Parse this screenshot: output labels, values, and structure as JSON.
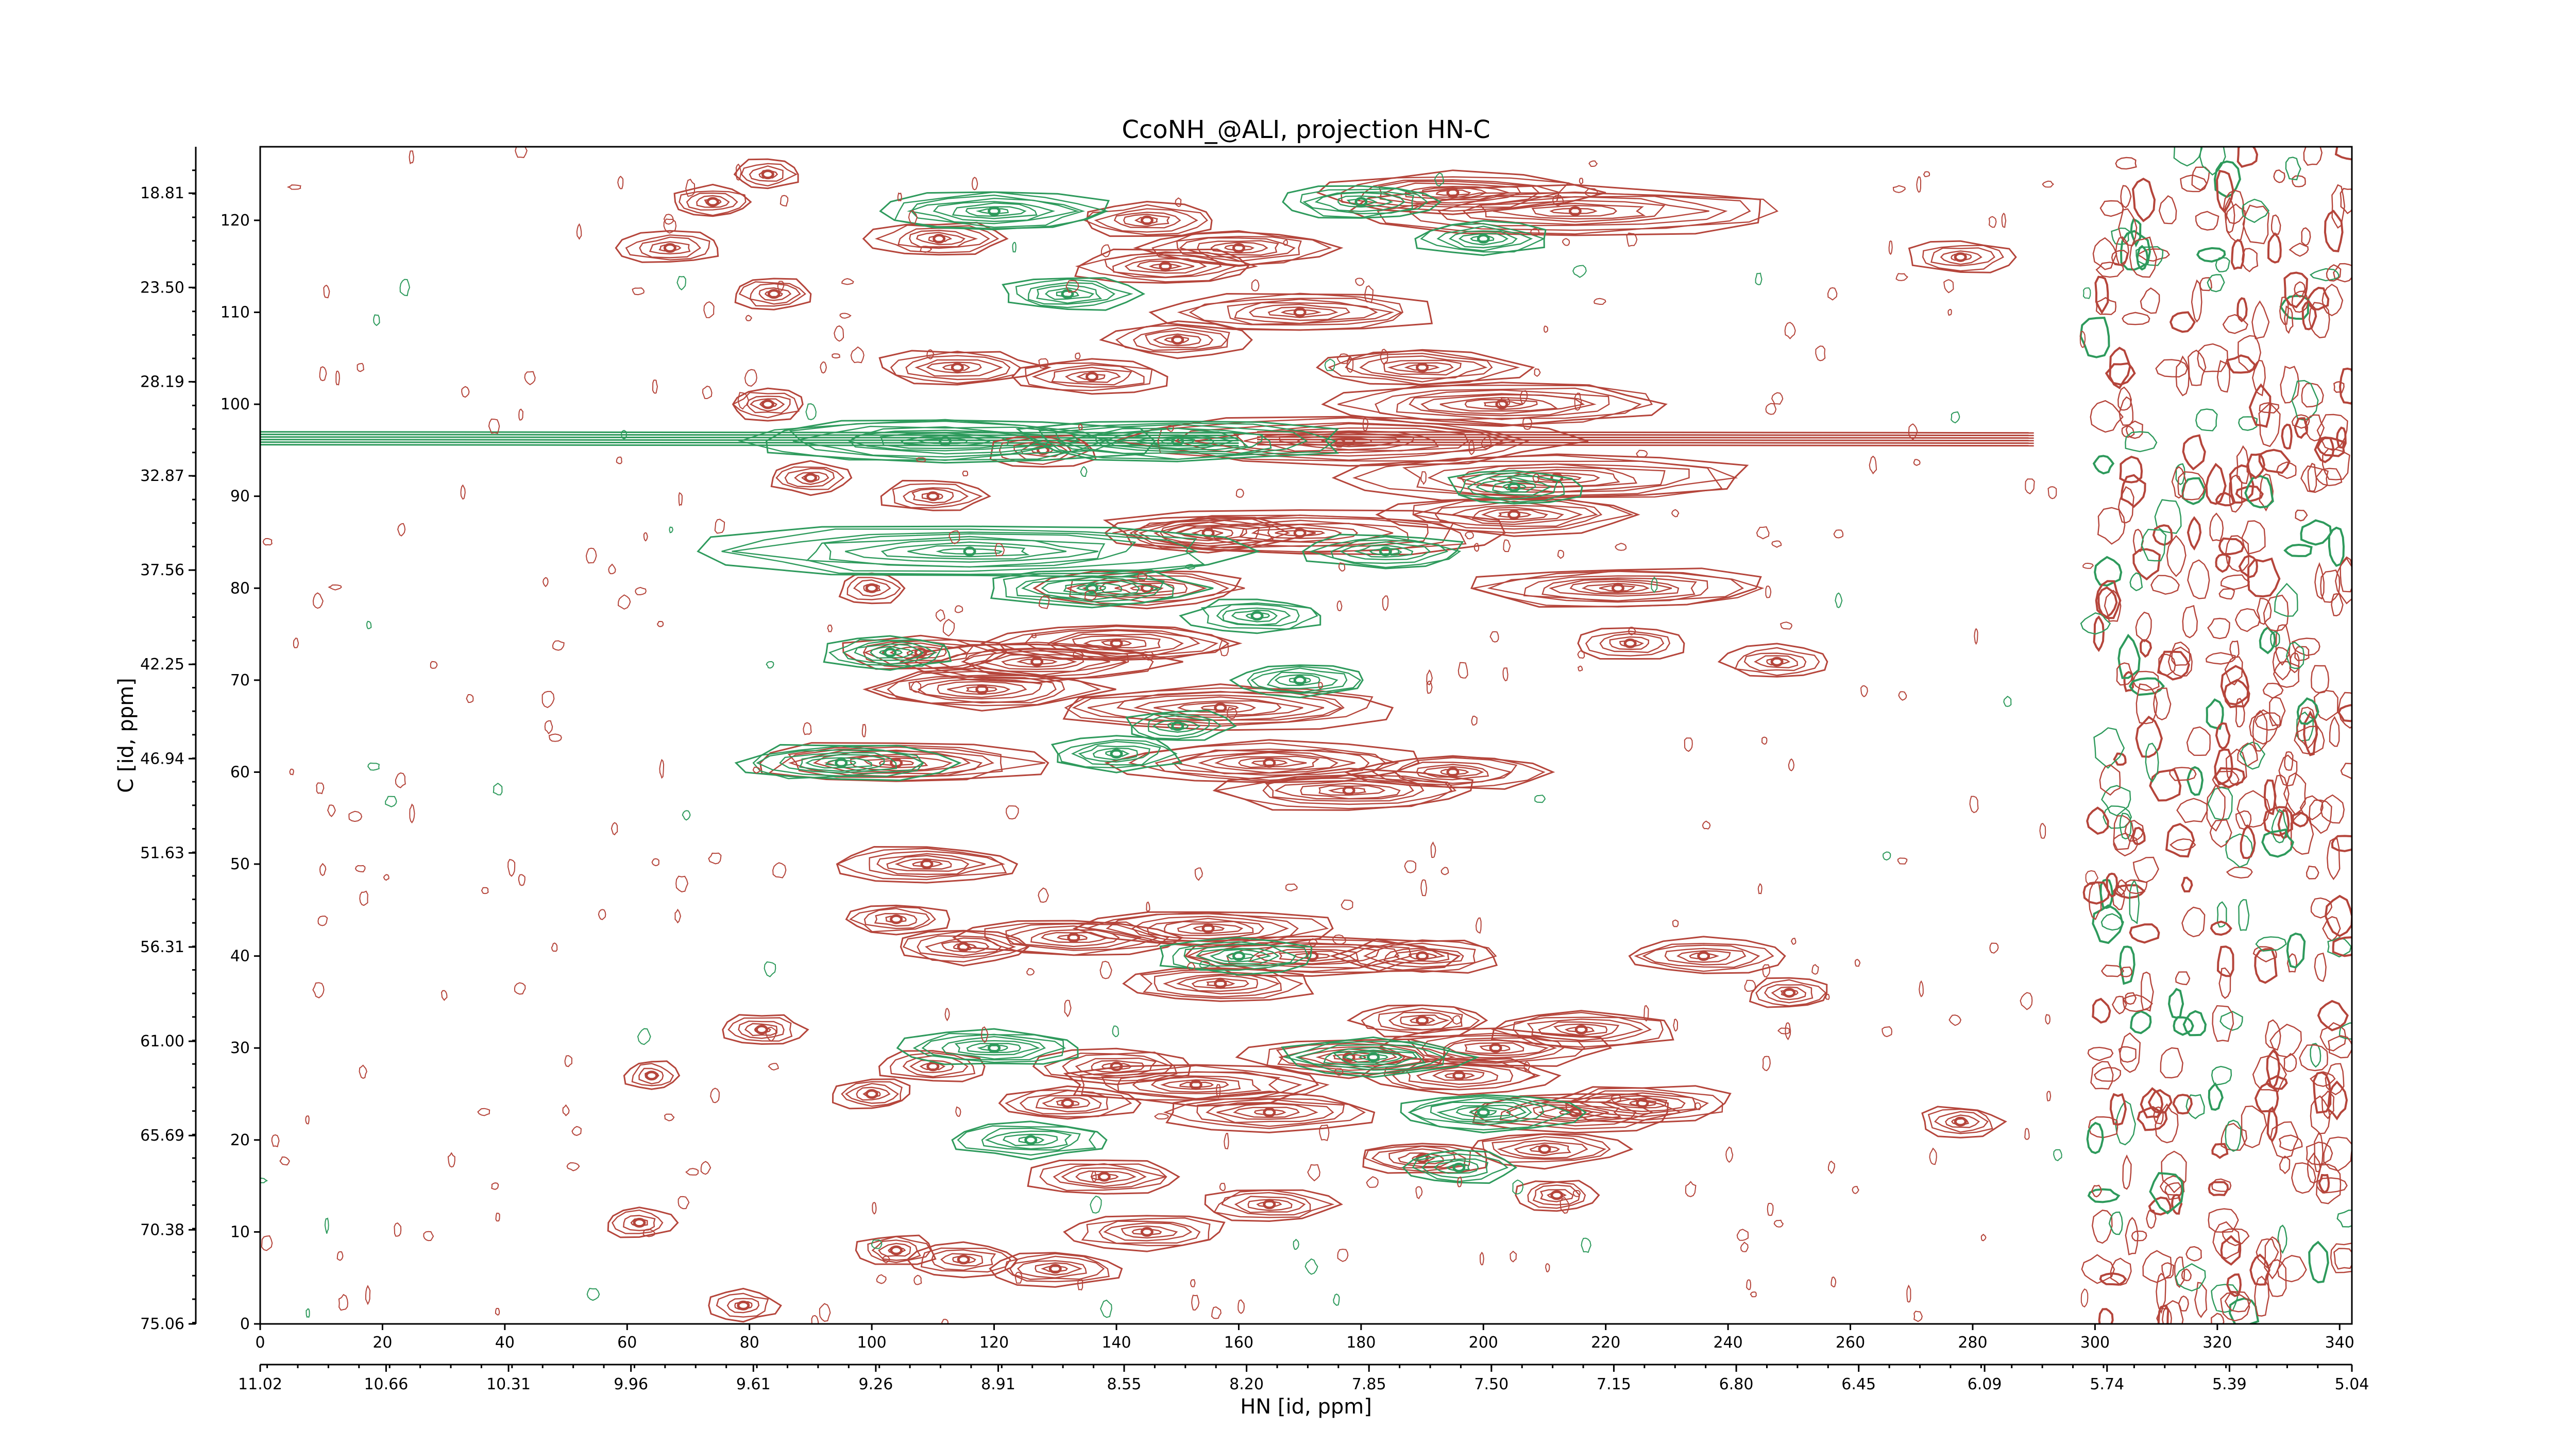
{
  "chart_data": {
    "type": "contour",
    "title": "CcoNH_@ALI, projection HN-C",
    "xlabel": "HN [id, ppm]",
    "ylabel": "C [id, ppm]",
    "x_index_axis": {
      "range": [
        0,
        342
      ],
      "ticks": [
        "0",
        "20",
        "40",
        "60",
        "80",
        "100",
        "120",
        "140",
        "160",
        "180",
        "200",
        "220",
        "240",
        "260",
        "280",
        "300",
        "320",
        "340"
      ]
    },
    "x_ppm_axis": {
      "range": [
        11.02,
        5.04
      ],
      "ticks": [
        "11.02",
        "10.66",
        "10.31",
        "9.96",
        "9.61",
        "9.26",
        "8.91",
        "8.55",
        "8.20",
        "7.85",
        "7.50",
        "7.15",
        "6.80",
        "6.45",
        "6.09",
        "5.74",
        "5.39",
        "5.04"
      ]
    },
    "y_index_axis": {
      "range": [
        0,
        128
      ],
      "ticks": [
        "0",
        "10",
        "20",
        "30",
        "40",
        "50",
        "60",
        "70",
        "80",
        "90",
        "100",
        "110",
        "120"
      ]
    },
    "y_ppm_axis": {
      "range": [
        75.06,
        16.5
      ],
      "ticks": [
        "75.06",
        "70.38",
        "65.69",
        "61.00",
        "56.31",
        "51.63",
        "46.94",
        "42.25",
        "37.56",
        "32.87",
        "28.19",
        "23.50",
        "18.81"
      ]
    },
    "series": [
      {
        "color": "#b5453b"
      },
      {
        "color": "#2e9a5c"
      }
    ],
    "peaks": [
      {
        "x": 100,
        "y": 80,
        "sign": "pos",
        "len": 5
      },
      {
        "x": 108,
        "y": 73,
        "sign": "pos",
        "len": 12
      },
      {
        "x": 104,
        "y": 61,
        "sign": "pos",
        "len": 22
      },
      {
        "x": 118,
        "y": 69,
        "sign": "pos",
        "len": 18
      },
      {
        "x": 127,
        "y": 72,
        "sign": "pos",
        "len": 20
      },
      {
        "x": 140,
        "y": 74,
        "sign": "pos",
        "len": 18
      },
      {
        "x": 157,
        "y": 67,
        "sign": "pos",
        "len": 26
      },
      {
        "x": 165,
        "y": 61,
        "sign": "pos",
        "len": 22
      },
      {
        "x": 178,
        "y": 58,
        "sign": "pos",
        "len": 20
      },
      {
        "x": 195,
        "y": 60,
        "sign": "pos",
        "len": 14
      },
      {
        "x": 145,
        "y": 80,
        "sign": "pos",
        "len": 15
      },
      {
        "x": 170,
        "y": 86,
        "sign": "pos",
        "len": 30
      },
      {
        "x": 155,
        "y": 86,
        "sign": "pos",
        "len": 14
      },
      {
        "x": 205,
        "y": 88,
        "sign": "pos",
        "len": 18
      },
      {
        "x": 212,
        "y": 92,
        "sign": "pos",
        "len": 30
      },
      {
        "x": 222,
        "y": 80,
        "sign": "pos",
        "len": 22
      },
      {
        "x": 170,
        "y": 110,
        "sign": "pos",
        "len": 20
      },
      {
        "x": 150,
        "y": 107,
        "sign": "pos",
        "len": 10
      },
      {
        "x": 190,
        "y": 104,
        "sign": "pos",
        "len": 15
      },
      {
        "x": 203,
        "y": 100,
        "sign": "pos",
        "len": 25
      },
      {
        "x": 178,
        "y": 96,
        "sign": "pos",
        "len": 32
      },
      {
        "x": 148,
        "y": 115,
        "sign": "pos",
        "len": 14
      },
      {
        "x": 160,
        "y": 117,
        "sign": "pos",
        "len": 14
      },
      {
        "x": 195,
        "y": 123,
        "sign": "pos",
        "len": 20
      },
      {
        "x": 215,
        "y": 121,
        "sign": "pos",
        "len": 32
      },
      {
        "x": 145,
        "y": 120,
        "sign": "pos",
        "len": 10
      },
      {
        "x": 83,
        "y": 125,
        "sign": "pos",
        "len": 5
      },
      {
        "x": 74,
        "y": 122,
        "sign": "pos",
        "len": 6
      },
      {
        "x": 67,
        "y": 117,
        "sign": "pos",
        "len": 8
      },
      {
        "x": 84,
        "y": 112,
        "sign": "pos",
        "len": 6
      },
      {
        "x": 111,
        "y": 118,
        "sign": "pos",
        "len": 10
      },
      {
        "x": 114,
        "y": 104,
        "sign": "pos",
        "len": 12
      },
      {
        "x": 136,
        "y": 103,
        "sign": "pos",
        "len": 12
      },
      {
        "x": 128,
        "y": 95,
        "sign": "pos",
        "len": 8
      },
      {
        "x": 110,
        "y": 90,
        "sign": "pos",
        "len": 8
      },
      {
        "x": 90,
        "y": 92,
        "sign": "pos",
        "len": 6
      },
      {
        "x": 83,
        "y": 100,
        "sign": "pos",
        "len": 6
      },
      {
        "x": 109,
        "y": 50,
        "sign": "pos",
        "len": 14
      },
      {
        "x": 104,
        "y": 44,
        "sign": "pos",
        "len": 8
      },
      {
        "x": 115,
        "y": 41,
        "sign": "pos",
        "len": 10
      },
      {
        "x": 133,
        "y": 42,
        "sign": "pos",
        "len": 16
      },
      {
        "x": 155,
        "y": 43,
        "sign": "pos",
        "len": 18
      },
      {
        "x": 172,
        "y": 40,
        "sign": "pos",
        "len": 20
      },
      {
        "x": 190,
        "y": 40,
        "sign": "pos",
        "len": 12
      },
      {
        "x": 157,
        "y": 37,
        "sign": "pos",
        "len": 14
      },
      {
        "x": 190,
        "y": 33,
        "sign": "pos",
        "len": 10
      },
      {
        "x": 202,
        "y": 30,
        "sign": "pos",
        "len": 16
      },
      {
        "x": 216,
        "y": 32,
        "sign": "pos",
        "len": 14
      },
      {
        "x": 178,
        "y": 29,
        "sign": "pos",
        "len": 16
      },
      {
        "x": 153,
        "y": 26,
        "sign": "pos",
        "len": 20
      },
      {
        "x": 140,
        "y": 28,
        "sign": "pos",
        "len": 12
      },
      {
        "x": 132,
        "y": 24,
        "sign": "pos",
        "len": 10
      },
      {
        "x": 165,
        "y": 23,
        "sign": "pos",
        "len": 16
      },
      {
        "x": 196,
        "y": 27,
        "sign": "pos",
        "len": 14
      },
      {
        "x": 215,
        "y": 23,
        "sign": "pos",
        "len": 16
      },
      {
        "x": 226,
        "y": 24,
        "sign": "pos",
        "len": 14
      },
      {
        "x": 236,
        "y": 40,
        "sign": "pos",
        "len": 12
      },
      {
        "x": 250,
        "y": 36,
        "sign": "pos",
        "len": 6
      },
      {
        "x": 248,
        "y": 72,
        "sign": "pos",
        "len": 8
      },
      {
        "x": 224,
        "y": 74,
        "sign": "pos",
        "len": 8
      },
      {
        "x": 278,
        "y": 22,
        "sign": "pos",
        "len": 6
      },
      {
        "x": 278,
        "y": 116,
        "sign": "pos",
        "len": 8
      },
      {
        "x": 100,
        "y": 25,
        "sign": "pos",
        "len": 6
      },
      {
        "x": 110,
        "y": 28,
        "sign": "pos",
        "len": 8
      },
      {
        "x": 104,
        "y": 8,
        "sign": "pos",
        "len": 6
      },
      {
        "x": 115,
        "y": 7,
        "sign": "pos",
        "len": 8
      },
      {
        "x": 130,
        "y": 6,
        "sign": "pos",
        "len": 10
      },
      {
        "x": 145,
        "y": 10,
        "sign": "pos",
        "len": 12
      },
      {
        "x": 138,
        "y": 16,
        "sign": "pos",
        "len": 12
      },
      {
        "x": 165,
        "y": 13,
        "sign": "pos",
        "len": 10
      },
      {
        "x": 190,
        "y": 18,
        "sign": "pos",
        "len": 10
      },
      {
        "x": 210,
        "y": 19,
        "sign": "pos",
        "len": 12
      },
      {
        "x": 212,
        "y": 14,
        "sign": "pos",
        "len": 6
      },
      {
        "x": 62,
        "y": 11,
        "sign": "pos",
        "len": 5
      },
      {
        "x": 82,
        "y": 32,
        "sign": "pos",
        "len": 6
      },
      {
        "x": 64,
        "y": 27,
        "sign": "pos",
        "len": 4
      },
      {
        "x": 79,
        "y": 2,
        "sign": "pos",
        "len": 5
      },
      {
        "x": 95,
        "y": 61,
        "sign": "neg",
        "len": 16
      },
      {
        "x": 103,
        "y": 73,
        "sign": "neg",
        "len": 10
      },
      {
        "x": 140,
        "y": 62,
        "sign": "neg",
        "len": 10
      },
      {
        "x": 150,
        "y": 65,
        "sign": "neg",
        "len": 8
      },
      {
        "x": 170,
        "y": 70,
        "sign": "neg",
        "len": 10
      },
      {
        "x": 116,
        "y": 84,
        "sign": "neg",
        "len": 40
      },
      {
        "x": 136,
        "y": 80,
        "sign": "neg",
        "len": 16
      },
      {
        "x": 112,
        "y": 96,
        "sign": "neg",
        "len": 30
      },
      {
        "x": 150,
        "y": 96,
        "sign": "neg",
        "len": 24
      },
      {
        "x": 120,
        "y": 121,
        "sign": "neg",
        "len": 18
      },
      {
        "x": 132,
        "y": 112,
        "sign": "neg",
        "len": 10
      },
      {
        "x": 180,
        "y": 122,
        "sign": "neg",
        "len": 12
      },
      {
        "x": 200,
        "y": 118,
        "sign": "neg",
        "len": 10
      },
      {
        "x": 120,
        "y": 30,
        "sign": "neg",
        "len": 14
      },
      {
        "x": 126,
        "y": 20,
        "sign": "neg",
        "len": 12
      },
      {
        "x": 160,
        "y": 40,
        "sign": "neg",
        "len": 12
      },
      {
        "x": 182,
        "y": 29,
        "sign": "neg",
        "len": 14
      },
      {
        "x": 200,
        "y": 23,
        "sign": "neg",
        "len": 14
      },
      {
        "x": 196,
        "y": 17,
        "sign": "neg",
        "len": 8
      },
      {
        "x": 184,
        "y": 84,
        "sign": "neg",
        "len": 12
      },
      {
        "x": 205,
        "y": 91,
        "sign": "neg",
        "len": 10
      },
      {
        "x": 163,
        "y": 77,
        "sign": "neg",
        "len": 10
      }
    ]
  }
}
